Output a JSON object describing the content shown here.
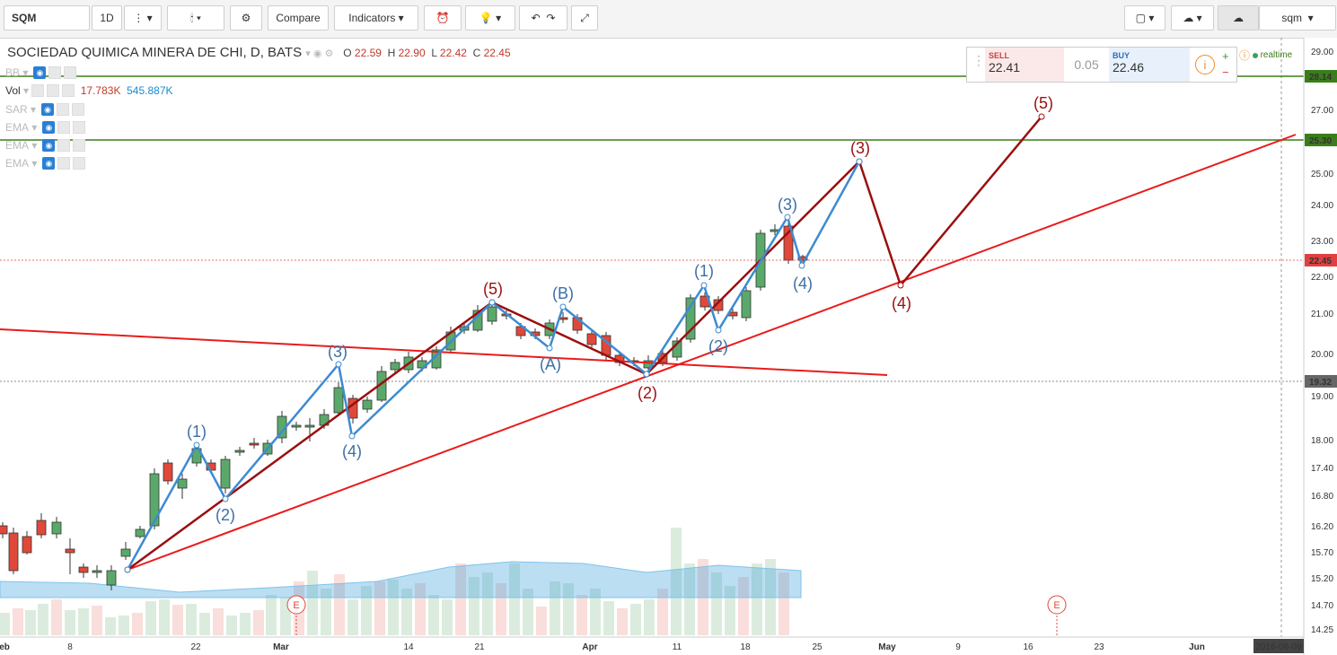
{
  "toolbar": {
    "symbol": "SQM",
    "interval": "1D",
    "compare_label": "Compare",
    "indicators_label": "Indicators",
    "layout_name": "sqm"
  },
  "legend": {
    "title": "SOCIEDAD QUIMICA MINERA DE CHI, D, BATS",
    "o_label": "O",
    "o": "22.59",
    "h_label": "H",
    "h": "22.90",
    "l_label": "L",
    "l": "22.42",
    "c_label": "C",
    "c": "22.45"
  },
  "indicators": [
    {
      "name": "BB"
    },
    {
      "name": "Vol",
      "v1": "17.783K",
      "v2": "545.887K"
    },
    {
      "name": "SAR"
    },
    {
      "name": "EMA"
    },
    {
      "name": "EMA"
    },
    {
      "name": "EMA"
    }
  ],
  "trade": {
    "sell_label": "SELL",
    "sell": "22.41",
    "spread": "0.05",
    "buy_label": "BUY",
    "buy": "22.46",
    "realtime": "realtime"
  },
  "price_axis": {
    "ticks": [
      "29.00",
      "28.00",
      "27.00",
      "26.00",
      "25.00",
      "24.00",
      "23.00",
      "22.00",
      "21.00",
      "20.00",
      "19.00",
      "18.00",
      "17.40",
      "16.80",
      "16.20",
      "15.70",
      "15.20",
      "14.70",
      "14.25"
    ],
    "markers": [
      {
        "label": "28.14",
        "color": "#3a7d1a"
      },
      {
        "label": "25.30",
        "color": "#3a7d1a"
      },
      {
        "label": "22.45",
        "color": "#e04040"
      },
      {
        "label": "19.32",
        "color": "#666666"
      }
    ]
  },
  "time_axis": {
    "ticks": [
      "Feb",
      "8",
      "22",
      "Mar",
      "14",
      "21",
      "Apr",
      "11",
      "18",
      "25",
      "May",
      "9",
      "16",
      "23",
      "Jun"
    ],
    "cursor_label": "2016-06-09"
  },
  "wave_labels": {
    "primary": [
      "(5)",
      "(2)",
      "(3)",
      "(4)",
      "(5)"
    ],
    "secondary": [
      "(1)",
      "(2)",
      "(3)",
      "(4)",
      "(A)",
      "(B)",
      "(1)",
      "(2)",
      "(3)",
      "(4)"
    ]
  },
  "events": [
    "E",
    "E"
  ],
  "colors": {
    "up": "#5aa96b",
    "down": "#e0483a",
    "blue_wave": "#3d8bd1",
    "dark_wave": "#9b0f0f",
    "trend": "#e81c1c",
    "hline": "#3a7d1a"
  }
}
